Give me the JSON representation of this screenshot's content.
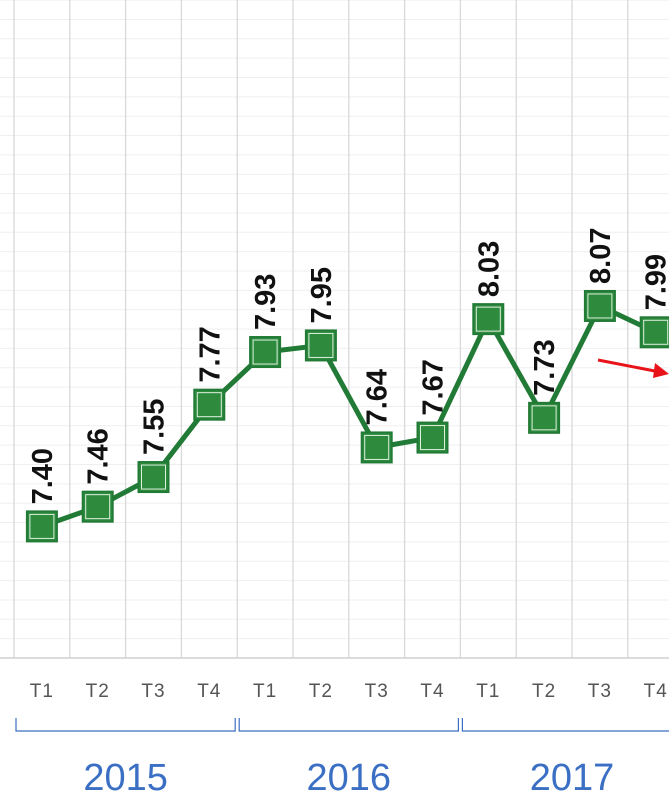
{
  "chart_data": {
    "type": "line",
    "categories": [
      "T1",
      "T2",
      "T3",
      "T4",
      "T1",
      "T2",
      "T3",
      "T4",
      "T1",
      "T2",
      "T3",
      "T4"
    ],
    "groups": [
      "2015",
      "2016",
      "2017"
    ],
    "series": [
      {
        "color": "#217a35",
        "values": [
          7.4,
          7.46,
          7.55,
          7.77,
          7.93,
          7.95,
          7.64,
          7.67,
          8.03,
          7.73,
          8.07,
          7.99
        ],
        "value_labels": [
          "7.40",
          "7.46",
          "7.55",
          "7.77",
          "7.93",
          "7.95",
          "7.64",
          "7.67",
          "8.03",
          "7.73",
          "8.07",
          "7.99"
        ]
      }
    ],
    "ylim": [
      7,
      9
    ],
    "grid": true
  }
}
